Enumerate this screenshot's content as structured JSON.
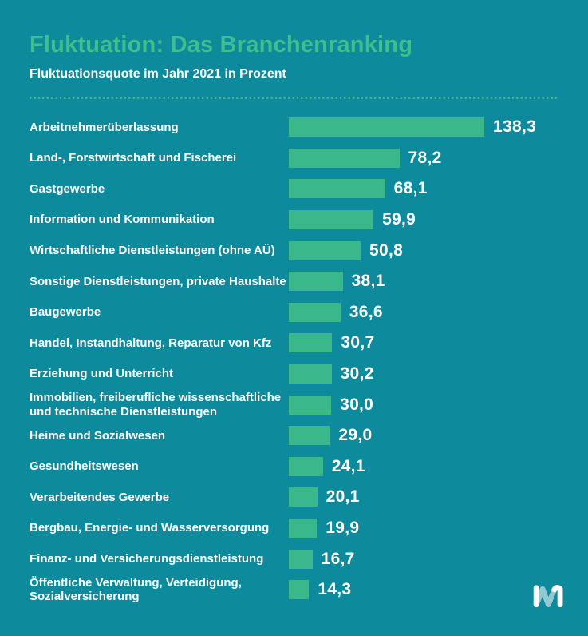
{
  "header": {
    "title": "Fluktuation: Das Branchenranking",
    "subtitle": "Fluktuationsquote im Jahr 2021 in Prozent"
  },
  "chart_data": {
    "type": "bar",
    "orientation": "horizontal",
    "title": "Fluktuation: Das Branchenranking",
    "subtitle": "Fluktuationsquote im Jahr 2021 in Prozent",
    "unit": "Prozent",
    "year": "2021",
    "xlim": [
      0,
      138.3
    ],
    "grid": false,
    "legend": false,
    "categories": [
      "Arbeitnehmerüberlassung",
      "Land-, Forstwirtschaft und Fischerei",
      "Gastgewerbe",
      "Information und Kommunikation",
      "Wirtschaftliche Dienstleistungen (ohne AÜ)",
      "Sonstige Dienstleistungen, private Haushalte",
      "Baugewerbe",
      "Handel, Instandhaltung, Reparatur von Kfz",
      "Erziehung und Unterricht",
      "Immobilien, freiberufliche wissenschaftliche und technische Dienstleistungen",
      "Heime und Sozialwesen",
      "Gesundheitswesen",
      "Verarbeitendes Gewerbe",
      "Bergbau, Energie- und Wasserversorgung",
      "Finanz- und Versicherungsdienstleistung",
      "Öffentliche Verwaltung, Verteidigung, Sozialversicherung"
    ],
    "values": [
      138.3,
      78.2,
      68.1,
      59.9,
      50.8,
      38.1,
      36.6,
      30.7,
      30.2,
      30.0,
      29.0,
      24.1,
      20.1,
      19.9,
      16.7,
      14.3
    ],
    "value_labels": [
      "138,3",
      "78,2",
      "68,1",
      "59,9",
      "50,8",
      "38,1",
      "36,6",
      "30,7",
      "30,2",
      "30,0",
      "29,0",
      "24,1",
      "20,1",
      "19,9",
      "16,7",
      "14,3"
    ]
  },
  "logo": {
    "name": "ribbon-m-logo"
  },
  "colors": {
    "background": "#0d8a9b",
    "accent_green": "#3fbe8e",
    "bar_green": "#3ab78b",
    "dot_green": "#44b381",
    "text_white": "#ffffff"
  }
}
